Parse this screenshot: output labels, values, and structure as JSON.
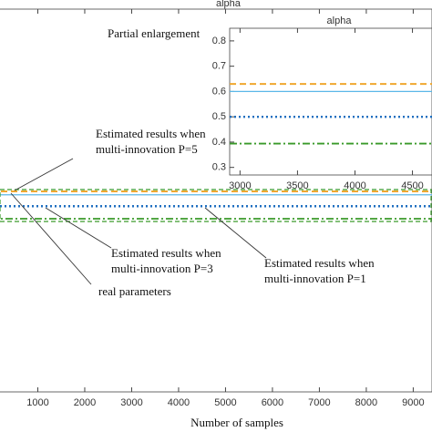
{
  "chart_data": [
    {
      "type": "hline",
      "title": "alpha",
      "xlabel": "Number of samples",
      "xlim": [
        0,
        9400
      ],
      "ylim": [
        -1.13,
        2.23
      ],
      "xticks": [
        1000,
        2000,
        3000,
        4000,
        5000,
        6000,
        7000,
        8000,
        9000
      ],
      "series": [
        {
          "color": "#f0a830",
          "style": "dashed",
          "value": 0.63
        },
        {
          "color": "#5bb8e8",
          "style": "solid",
          "value": 0.6
        },
        {
          "color": "#1f6fc0",
          "style": "dotted",
          "value": 0.5
        },
        {
          "color": "#3a9a2a",
          "style": "dashdot",
          "value": 0.39
        }
      ],
      "annotations": [
        [
          "Partial enlargement"
        ],
        [
          "Estimated results when",
          "multi-innovation P=5"
        ],
        [
          "Estimated results when",
          "multi-innovation P=3"
        ],
        [
          "Estimated results when",
          "multi-innovation P=1"
        ],
        [
          "real parameters"
        ]
      ]
    },
    {
      "type": "hline",
      "title": "alpha",
      "xlim": [
        2910,
        4670
      ],
      "ylim": [
        0.27,
        0.85
      ],
      "xticks": [
        3000,
        3500,
        4000,
        4500
      ],
      "yticks": [
        0.3,
        0.4,
        0.5,
        0.6,
        0.7,
        0.8
      ],
      "series": [
        {
          "color": "#f0a830",
          "style": "dashed",
          "value": 0.63
        },
        {
          "color": "#5bb8e8",
          "style": "solid",
          "value": 0.6
        },
        {
          "color": "#1f6fc0",
          "style": "dotted",
          "value": 0.5
        },
        {
          "color": "#3a9a2a",
          "style": "dashdot",
          "value": 0.394
        }
      ]
    }
  ]
}
